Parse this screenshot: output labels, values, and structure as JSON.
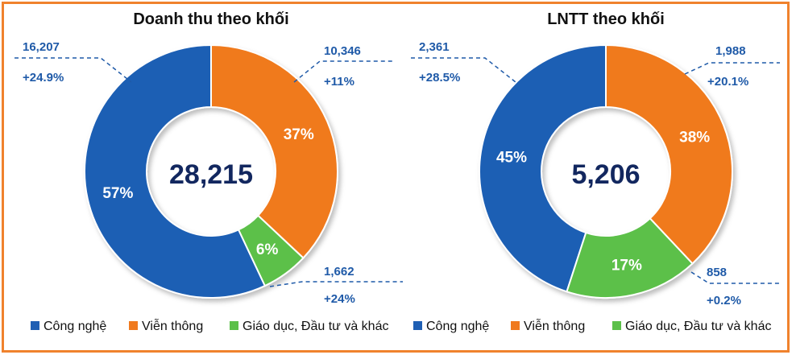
{
  "chart_data": [
    {
      "type": "pie",
      "title": "Doanh thu theo khối",
      "total_label": "28,215",
      "categories": [
        "Công nghệ",
        "Viễn thông",
        "Giáo dục, Đầu tư và khác"
      ],
      "values": [
        57,
        37,
        6
      ],
      "value_labels": [
        "57%",
        "37%",
        "6%"
      ],
      "annotations": [
        {
          "segment": "Công nghệ",
          "value": "16,207",
          "growth": "+24.9%"
        },
        {
          "segment": "Viễn thông",
          "value": "10,346",
          "growth": "+11%"
        },
        {
          "segment": "Giáo dục, Đầu tư và khác",
          "value": "1,662",
          "growth": "+24%"
        }
      ],
      "colors": [
        "#1f5fb4",
        "#f07a1e",
        "#5cc04a"
      ],
      "legend": "bottom"
    },
    {
      "type": "pie",
      "title": "LNTT theo khối",
      "total_label": "5,206",
      "categories": [
        "Công nghệ",
        "Viễn thông",
        "Giáo dục, Đầu tư và khác"
      ],
      "values": [
        45,
        38,
        17
      ],
      "value_labels": [
        "45%",
        "38%",
        "17%"
      ],
      "annotations": [
        {
          "segment": "Công nghệ",
          "value": "2,361",
          "growth": "+28.5%"
        },
        {
          "segment": "Viễn thông",
          "value": "1,988",
          "growth": "+20.1%"
        },
        {
          "segment": "Giáo dục, Đầu tư và khác",
          "value": "858",
          "growth": "+0.2%"
        }
      ],
      "colors": [
        "#1f5fb4",
        "#f07a1e",
        "#5cc04a"
      ],
      "legend": "bottom"
    }
  ]
}
